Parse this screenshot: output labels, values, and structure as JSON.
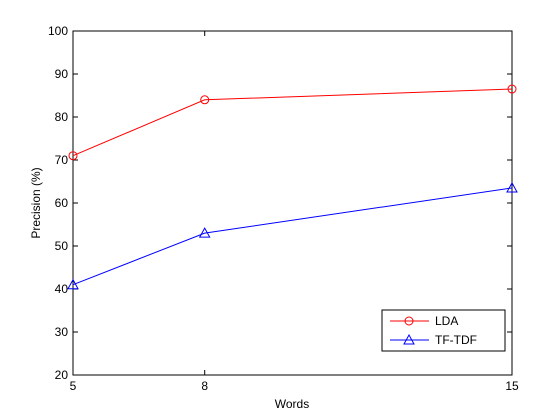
{
  "chart_data": {
    "type": "line",
    "title": "",
    "xlabel": "Words",
    "ylabel": "Precision (%)",
    "x": [
      5,
      8,
      15
    ],
    "xlim": [
      5,
      15
    ],
    "ylim": [
      20,
      100
    ],
    "xticks": [
      5,
      8,
      15
    ],
    "yticks": [
      20,
      30,
      40,
      50,
      60,
      70,
      80,
      90,
      100
    ],
    "grid": false,
    "legend_position": "bottom-right",
    "series": [
      {
        "name": "LDA",
        "values": [
          71,
          84,
          86.5
        ],
        "color": "#ff0000",
        "marker": "circle"
      },
      {
        "name": "TF-TDF",
        "values": [
          41,
          53,
          63.5
        ],
        "color": "#0000ff",
        "marker": "triangle"
      }
    ]
  }
}
